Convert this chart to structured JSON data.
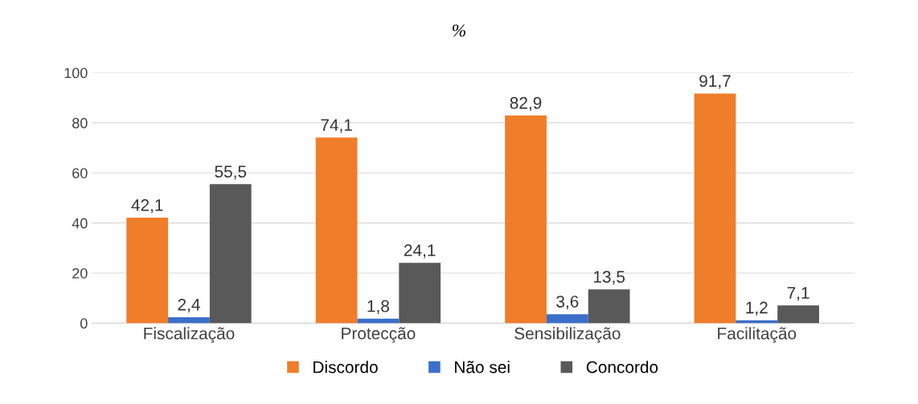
{
  "chart_data": {
    "type": "bar",
    "title": "%",
    "categories": [
      "Fiscalização",
      "Protecção",
      "Sensibilização",
      "Facilitação"
    ],
    "series": [
      {
        "name": "Discordo",
        "color": "#f07d2a",
        "values": [
          42.1,
          74.1,
          82.9,
          91.7
        ],
        "value_labels": [
          "42,1",
          "74,1",
          "82,9",
          "91,7"
        ]
      },
      {
        "name": "Não sei",
        "color": "#3b6fc9",
        "values": [
          2.4,
          1.8,
          3.6,
          1.2
        ],
        "value_labels": [
          "2,4",
          "1,8",
          "3,6",
          "1,2"
        ]
      },
      {
        "name": "Concordo",
        "color": "#595959",
        "values": [
          55.5,
          24.1,
          13.5,
          7.1
        ],
        "value_labels": [
          "55,5",
          "24,1",
          "13,5",
          "7,1"
        ]
      }
    ],
    "ylim": [
      0,
      100
    ],
    "yticks": [
      0,
      20,
      40,
      60,
      80,
      100
    ],
    "grid": "y",
    "legend": "bottom"
  }
}
